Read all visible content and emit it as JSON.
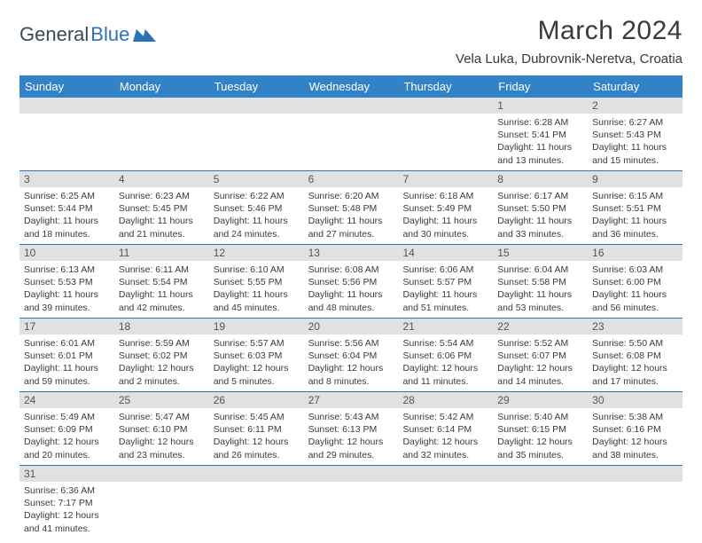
{
  "logo": {
    "text1": "General",
    "text2": "Blue"
  },
  "title": "March 2024",
  "location": "Vela Luka, Dubrovnik-Neretva, Croatia",
  "weekdays": [
    "Sunday",
    "Monday",
    "Tuesday",
    "Wednesday",
    "Thursday",
    "Friday",
    "Saturday"
  ],
  "colors": {
    "header_bg": "#3182c7",
    "header_text": "#ffffff",
    "daynum_bg": "#e1e1e1",
    "divider": "#2b73b8",
    "text": "#3a3a3a"
  },
  "font": {
    "family": "Arial",
    "title_size": 30,
    "location_size": 15,
    "weekday_size": 13,
    "body_size": 10.5
  },
  "weeks": [
    {
      "nums": [
        "",
        "",
        "",
        "",
        "",
        "1",
        "2"
      ],
      "cells": [
        null,
        null,
        null,
        null,
        null,
        {
          "sunrise": "Sunrise: 6:28 AM",
          "sunset": "Sunset: 5:41 PM",
          "d1": "Daylight: 11 hours",
          "d2": "and 13 minutes."
        },
        {
          "sunrise": "Sunrise: 6:27 AM",
          "sunset": "Sunset: 5:43 PM",
          "d1": "Daylight: 11 hours",
          "d2": "and 15 minutes."
        }
      ]
    },
    {
      "nums": [
        "3",
        "4",
        "5",
        "6",
        "7",
        "8",
        "9"
      ],
      "cells": [
        {
          "sunrise": "Sunrise: 6:25 AM",
          "sunset": "Sunset: 5:44 PM",
          "d1": "Daylight: 11 hours",
          "d2": "and 18 minutes."
        },
        {
          "sunrise": "Sunrise: 6:23 AM",
          "sunset": "Sunset: 5:45 PM",
          "d1": "Daylight: 11 hours",
          "d2": "and 21 minutes."
        },
        {
          "sunrise": "Sunrise: 6:22 AM",
          "sunset": "Sunset: 5:46 PM",
          "d1": "Daylight: 11 hours",
          "d2": "and 24 minutes."
        },
        {
          "sunrise": "Sunrise: 6:20 AM",
          "sunset": "Sunset: 5:48 PM",
          "d1": "Daylight: 11 hours",
          "d2": "and 27 minutes."
        },
        {
          "sunrise": "Sunrise: 6:18 AM",
          "sunset": "Sunset: 5:49 PM",
          "d1": "Daylight: 11 hours",
          "d2": "and 30 minutes."
        },
        {
          "sunrise": "Sunrise: 6:17 AM",
          "sunset": "Sunset: 5:50 PM",
          "d1": "Daylight: 11 hours",
          "d2": "and 33 minutes."
        },
        {
          "sunrise": "Sunrise: 6:15 AM",
          "sunset": "Sunset: 5:51 PM",
          "d1": "Daylight: 11 hours",
          "d2": "and 36 minutes."
        }
      ]
    },
    {
      "nums": [
        "10",
        "11",
        "12",
        "13",
        "14",
        "15",
        "16"
      ],
      "cells": [
        {
          "sunrise": "Sunrise: 6:13 AM",
          "sunset": "Sunset: 5:53 PM",
          "d1": "Daylight: 11 hours",
          "d2": "and 39 minutes."
        },
        {
          "sunrise": "Sunrise: 6:11 AM",
          "sunset": "Sunset: 5:54 PM",
          "d1": "Daylight: 11 hours",
          "d2": "and 42 minutes."
        },
        {
          "sunrise": "Sunrise: 6:10 AM",
          "sunset": "Sunset: 5:55 PM",
          "d1": "Daylight: 11 hours",
          "d2": "and 45 minutes."
        },
        {
          "sunrise": "Sunrise: 6:08 AM",
          "sunset": "Sunset: 5:56 PM",
          "d1": "Daylight: 11 hours",
          "d2": "and 48 minutes."
        },
        {
          "sunrise": "Sunrise: 6:06 AM",
          "sunset": "Sunset: 5:57 PM",
          "d1": "Daylight: 11 hours",
          "d2": "and 51 minutes."
        },
        {
          "sunrise": "Sunrise: 6:04 AM",
          "sunset": "Sunset: 5:58 PM",
          "d1": "Daylight: 11 hours",
          "d2": "and 53 minutes."
        },
        {
          "sunrise": "Sunrise: 6:03 AM",
          "sunset": "Sunset: 6:00 PM",
          "d1": "Daylight: 11 hours",
          "d2": "and 56 minutes."
        }
      ]
    },
    {
      "nums": [
        "17",
        "18",
        "19",
        "20",
        "21",
        "22",
        "23"
      ],
      "cells": [
        {
          "sunrise": "Sunrise: 6:01 AM",
          "sunset": "Sunset: 6:01 PM",
          "d1": "Daylight: 11 hours",
          "d2": "and 59 minutes."
        },
        {
          "sunrise": "Sunrise: 5:59 AM",
          "sunset": "Sunset: 6:02 PM",
          "d1": "Daylight: 12 hours",
          "d2": "and 2 minutes."
        },
        {
          "sunrise": "Sunrise: 5:57 AM",
          "sunset": "Sunset: 6:03 PM",
          "d1": "Daylight: 12 hours",
          "d2": "and 5 minutes."
        },
        {
          "sunrise": "Sunrise: 5:56 AM",
          "sunset": "Sunset: 6:04 PM",
          "d1": "Daylight: 12 hours",
          "d2": "and 8 minutes."
        },
        {
          "sunrise": "Sunrise: 5:54 AM",
          "sunset": "Sunset: 6:06 PM",
          "d1": "Daylight: 12 hours",
          "d2": "and 11 minutes."
        },
        {
          "sunrise": "Sunrise: 5:52 AM",
          "sunset": "Sunset: 6:07 PM",
          "d1": "Daylight: 12 hours",
          "d2": "and 14 minutes."
        },
        {
          "sunrise": "Sunrise: 5:50 AM",
          "sunset": "Sunset: 6:08 PM",
          "d1": "Daylight: 12 hours",
          "d2": "and 17 minutes."
        }
      ]
    },
    {
      "nums": [
        "24",
        "25",
        "26",
        "27",
        "28",
        "29",
        "30"
      ],
      "cells": [
        {
          "sunrise": "Sunrise: 5:49 AM",
          "sunset": "Sunset: 6:09 PM",
          "d1": "Daylight: 12 hours",
          "d2": "and 20 minutes."
        },
        {
          "sunrise": "Sunrise: 5:47 AM",
          "sunset": "Sunset: 6:10 PM",
          "d1": "Daylight: 12 hours",
          "d2": "and 23 minutes."
        },
        {
          "sunrise": "Sunrise: 5:45 AM",
          "sunset": "Sunset: 6:11 PM",
          "d1": "Daylight: 12 hours",
          "d2": "and 26 minutes."
        },
        {
          "sunrise": "Sunrise: 5:43 AM",
          "sunset": "Sunset: 6:13 PM",
          "d1": "Daylight: 12 hours",
          "d2": "and 29 minutes."
        },
        {
          "sunrise": "Sunrise: 5:42 AM",
          "sunset": "Sunset: 6:14 PM",
          "d1": "Daylight: 12 hours",
          "d2": "and 32 minutes."
        },
        {
          "sunrise": "Sunrise: 5:40 AM",
          "sunset": "Sunset: 6:15 PM",
          "d1": "Daylight: 12 hours",
          "d2": "and 35 minutes."
        },
        {
          "sunrise": "Sunrise: 5:38 AM",
          "sunset": "Sunset: 6:16 PM",
          "d1": "Daylight: 12 hours",
          "d2": "and 38 minutes."
        }
      ]
    },
    {
      "nums": [
        "31",
        "",
        "",
        "",
        "",
        "",
        ""
      ],
      "cells": [
        {
          "sunrise": "Sunrise: 6:36 AM",
          "sunset": "Sunset: 7:17 PM",
          "d1": "Daylight: 12 hours",
          "d2": "and 41 minutes."
        },
        null,
        null,
        null,
        null,
        null,
        null
      ]
    }
  ]
}
